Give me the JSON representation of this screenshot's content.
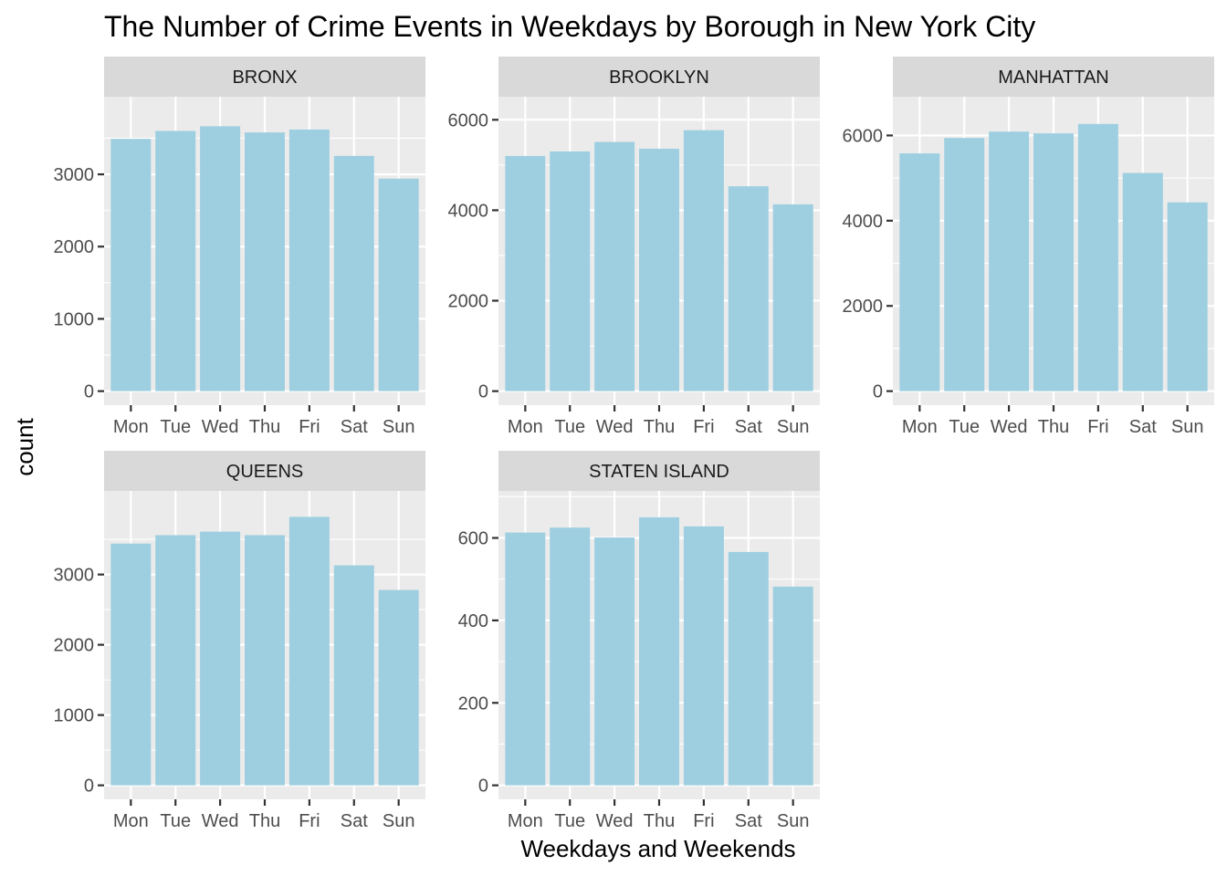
{
  "chart_data": {
    "type": "bar",
    "title": "The Number of Crime Events in Weekdays by Borough in New York City",
    "xlabel": "Weekdays and Weekends",
    "ylabel": "count",
    "categories": [
      "Mon",
      "Tue",
      "Wed",
      "Thu",
      "Fri",
      "Sat",
      "Sun"
    ],
    "bar_color": "#9ecfe0",
    "panel_background": "#ebebeb",
    "strip_background": "#d9d9d9",
    "grid": true,
    "scales": "free_y",
    "layout": "facet-wrap 2 rows x 3 columns",
    "panels": [
      {
        "label": "BRONX",
        "values": [
          3490,
          3600,
          3665,
          3580,
          3620,
          3255,
          2940
        ],
        "ylim": [
          0,
          3880
        ],
        "yticks": [
          0,
          1000,
          2000,
          3000
        ],
        "ytick_labels": [
          "0",
          "1000",
          "2000",
          "3000"
        ]
      },
      {
        "label": "BROOKLYN",
        "values": [
          5200,
          5300,
          5510,
          5360,
          5770,
          4530,
          4130
        ],
        "ylim": [
          0,
          6200
        ],
        "yticks": [
          0,
          2000,
          4000,
          6000
        ],
        "ytick_labels": [
          "0",
          "2000",
          "4000",
          "6000"
        ]
      },
      {
        "label": "MANHATTAN",
        "values": [
          5580,
          5940,
          6090,
          6050,
          6270,
          5120,
          4430
        ],
        "ylim": [
          0,
          6580
        ],
        "yticks": [
          0,
          2000,
          4000,
          6000
        ],
        "ytick_labels": [
          "0",
          "2000",
          "4000",
          "6000"
        ]
      },
      {
        "label": "QUEENS",
        "values": [
          3440,
          3560,
          3610,
          3560,
          3820,
          3130,
          2780
        ],
        "ylim": [
          0,
          3990
        ],
        "yticks": [
          0,
          1000,
          2000,
          3000
        ],
        "ytick_labels": [
          "0",
          "1000",
          "2000",
          "3000"
        ]
      },
      {
        "label": "STATEN ISLAND",
        "values": [
          613,
          625,
          601,
          650,
          628,
          566,
          482
        ],
        "ylim": [
          0,
          680
        ],
        "yticks": [
          0,
          200,
          400,
          600
        ],
        "ytick_labels": [
          "0",
          "200",
          "400",
          "600"
        ]
      }
    ]
  }
}
